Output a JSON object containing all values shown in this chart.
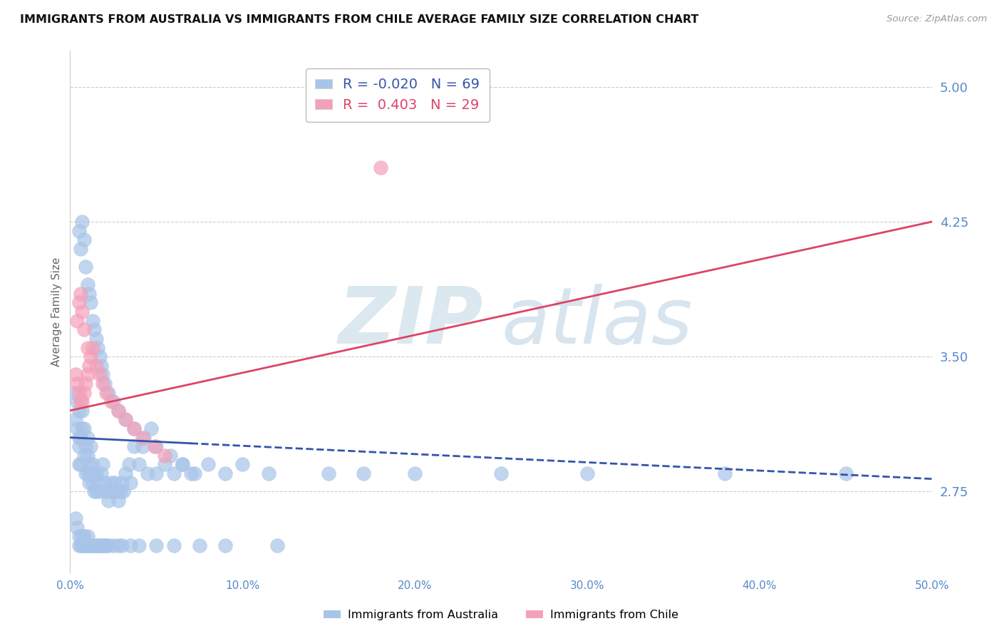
{
  "title": "IMMIGRANTS FROM AUSTRALIA VS IMMIGRANTS FROM CHILE AVERAGE FAMILY SIZE CORRELATION CHART",
  "source": "Source: ZipAtlas.com",
  "ylabel": "Average Family Size",
  "yticks": [
    2.75,
    3.5,
    4.25,
    5.0
  ],
  "xlim": [
    0.0,
    50.0
  ],
  "ylim": [
    2.3,
    5.2
  ],
  "australia_R": -0.02,
  "australia_N": 69,
  "chile_R": 0.403,
  "chile_N": 29,
  "australia_color": "#a8c4e8",
  "chile_color": "#f4a0b8",
  "australia_line_color": "#3355aa",
  "chile_line_color": "#dd4466",
  "grid_color": "#cccccc",
  "title_color": "#111111",
  "tick_color": "#5588cc",
  "watermark_color": "#dce8f0",
  "legend_border_color": "#bbbbbb",
  "aus_x": [
    0.3,
    0.3,
    0.4,
    0.4,
    0.5,
    0.5,
    0.5,
    0.5,
    0.6,
    0.6,
    0.7,
    0.7,
    0.8,
    0.8,
    0.9,
    0.9,
    1.0,
    1.0,
    1.0,
    1.1,
    1.1,
    1.2,
    1.2,
    1.3,
    1.3,
    1.4,
    1.4,
    1.5,
    1.5,
    1.6,
    1.7,
    1.8,
    1.9,
    2.0,
    2.1,
    2.2,
    2.3,
    2.4,
    2.5,
    2.6,
    2.7,
    2.8,
    2.9,
    3.0,
    3.1,
    3.2,
    3.4,
    3.5,
    3.7,
    4.0,
    4.2,
    4.5,
    4.7,
    5.0,
    5.5,
    6.0,
    6.5,
    7.0,
    8.0,
    9.0,
    10.0,
    11.5,
    15.0,
    17.0,
    20.0,
    25.0,
    30.0,
    38.0,
    45.0
  ],
  "aus_y": [
    3.15,
    3.3,
    3.1,
    3.25,
    3.0,
    2.9,
    3.05,
    3.2,
    2.9,
    3.05,
    3.1,
    3.2,
    2.95,
    3.1,
    2.85,
    3.0,
    2.85,
    2.95,
    3.05,
    2.8,
    2.9,
    2.85,
    3.0,
    2.8,
    2.9,
    2.75,
    2.85,
    2.75,
    2.85,
    2.8,
    2.75,
    2.85,
    2.9,
    2.8,
    2.75,
    2.7,
    2.75,
    2.8,
    2.75,
    2.8,
    2.75,
    2.7,
    2.75,
    2.8,
    2.75,
    2.85,
    2.9,
    2.8,
    3.0,
    2.9,
    3.0,
    2.85,
    3.1,
    2.85,
    2.9,
    2.85,
    2.9,
    2.85,
    2.9,
    2.85,
    2.9,
    2.85,
    2.85,
    2.85,
    2.85,
    2.85,
    2.85,
    2.85,
    2.85
  ],
  "aus_high_x": [
    0.5,
    0.6,
    0.7,
    0.8,
    0.9,
    1.0,
    1.1,
    1.2,
    1.3,
    1.4,
    1.5,
    1.6,
    1.7,
    1.8,
    1.9,
    2.0,
    2.2,
    2.5,
    2.8,
    3.2,
    3.7,
    4.3,
    5.0,
    5.8,
    6.5,
    7.2
  ],
  "aus_high_y": [
    4.2,
    4.1,
    4.25,
    4.15,
    4.0,
    3.9,
    3.85,
    3.8,
    3.7,
    3.65,
    3.6,
    3.55,
    3.5,
    3.45,
    3.4,
    3.35,
    3.3,
    3.25,
    3.2,
    3.15,
    3.1,
    3.05,
    3.0,
    2.95,
    2.9,
    2.85
  ],
  "aus_low_x": [
    0.3,
    0.4,
    0.5,
    0.5,
    0.6,
    0.7,
    0.7,
    0.8,
    0.8,
    0.9,
    1.0,
    1.0,
    1.1,
    1.2,
    1.3,
    1.4,
    1.5,
    1.6,
    1.7,
    1.8,
    1.9,
    2.0,
    2.1,
    2.2,
    2.5,
    2.8,
    3.0,
    3.5,
    4.0,
    5.0,
    6.0,
    7.5,
    9.0,
    12.0
  ],
  "aus_low_y": [
    2.6,
    2.55,
    2.5,
    2.45,
    2.45,
    2.45,
    2.5,
    2.45,
    2.5,
    2.45,
    2.45,
    2.5,
    2.45,
    2.45,
    2.45,
    2.45,
    2.45,
    2.45,
    2.45,
    2.45,
    2.45,
    2.45,
    2.45,
    2.45,
    2.45,
    2.45,
    2.45,
    2.45,
    2.45,
    2.45,
    2.45,
    2.45,
    2.45,
    2.45
  ],
  "chile_x": [
    0.3,
    0.4,
    0.5,
    0.6,
    0.7,
    0.8,
    0.9,
    1.0,
    1.1,
    1.2,
    1.3,
    1.5,
    1.7,
    1.9,
    2.1,
    2.4,
    2.8,
    3.2,
    3.7,
    4.2,
    4.9,
    5.5,
    0.4,
    0.5,
    0.6,
    0.7,
    0.8,
    1.0,
    18.0
  ],
  "chile_y": [
    3.4,
    3.35,
    3.3,
    3.25,
    3.25,
    3.3,
    3.35,
    3.4,
    3.45,
    3.5,
    3.55,
    3.45,
    3.4,
    3.35,
    3.3,
    3.25,
    3.2,
    3.15,
    3.1,
    3.05,
    3.0,
    2.95,
    3.7,
    3.8,
    3.85,
    3.75,
    3.65,
    3.55,
    4.55
  ],
  "aus_line_start_x": 0.0,
  "aus_line_end_x": 50.0,
  "aus_line_start_y": 3.05,
  "aus_line_end_y": 2.82,
  "chile_line_start_x": 0.0,
  "chile_line_end_x": 50.0,
  "chile_line_start_y": 3.2,
  "chile_line_end_y": 4.25
}
